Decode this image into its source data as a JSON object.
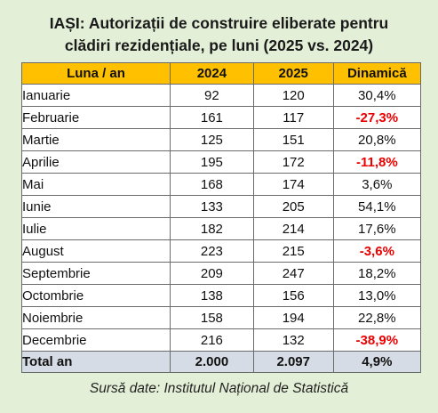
{
  "title_line1": "IAȘI: Autorizații de construire eliberate pentru",
  "title_line2": "clădiri rezidențiale, pe luni (2025 vs. 2024)",
  "headers": {
    "month": "Luna / an",
    "y1": "2024",
    "y2": "2025",
    "dyn": "Dinamică"
  },
  "rows": [
    {
      "month": "Ianuarie",
      "y1": "92",
      "y2": "120",
      "dyn": "30,4%",
      "negative": false
    },
    {
      "month": "Februarie",
      "y1": "161",
      "y2": "117",
      "dyn": "-27,3%",
      "negative": true
    },
    {
      "month": "Martie",
      "y1": "125",
      "y2": "151",
      "dyn": "20,8%",
      "negative": false
    },
    {
      "month": "Aprilie",
      "y1": "195",
      "y2": "172",
      "dyn": "-11,8%",
      "negative": true
    },
    {
      "month": "Mai",
      "y1": "168",
      "y2": "174",
      "dyn": "3,6%",
      "negative": false
    },
    {
      "month": "Iunie",
      "y1": "133",
      "y2": "205",
      "dyn": "54,1%",
      "negative": false
    },
    {
      "month": "Iulie",
      "y1": "182",
      "y2": "214",
      "dyn": "17,6%",
      "negative": false
    },
    {
      "month": "August",
      "y1": "223",
      "y2": "215",
      "dyn": "-3,6%",
      "negative": true
    },
    {
      "month": "Septembrie",
      "y1": "209",
      "y2": "247",
      "dyn": "18,2%",
      "negative": false
    },
    {
      "month": "Octombrie",
      "y1": "138",
      "y2": "156",
      "dyn": "13,0%",
      "negative": false
    },
    {
      "month": "Noiembrie",
      "y1": "158",
      "y2": "194",
      "dyn": "22,8%",
      "negative": false
    },
    {
      "month": "Decembrie",
      "y1": "216",
      "y2": "132",
      "dyn": "-38,9%",
      "negative": true
    }
  ],
  "total": {
    "label": "Total an",
    "y1": "2.000",
    "y2": "2.097",
    "dyn": "4,9%"
  },
  "source": "Sursă date: Institutul Național de Statistică",
  "colors": {
    "header_bg": "#ffc000",
    "total_bg": "#d6dce5",
    "negative": "#ee0000",
    "page_bg": "#e3efd6"
  }
}
